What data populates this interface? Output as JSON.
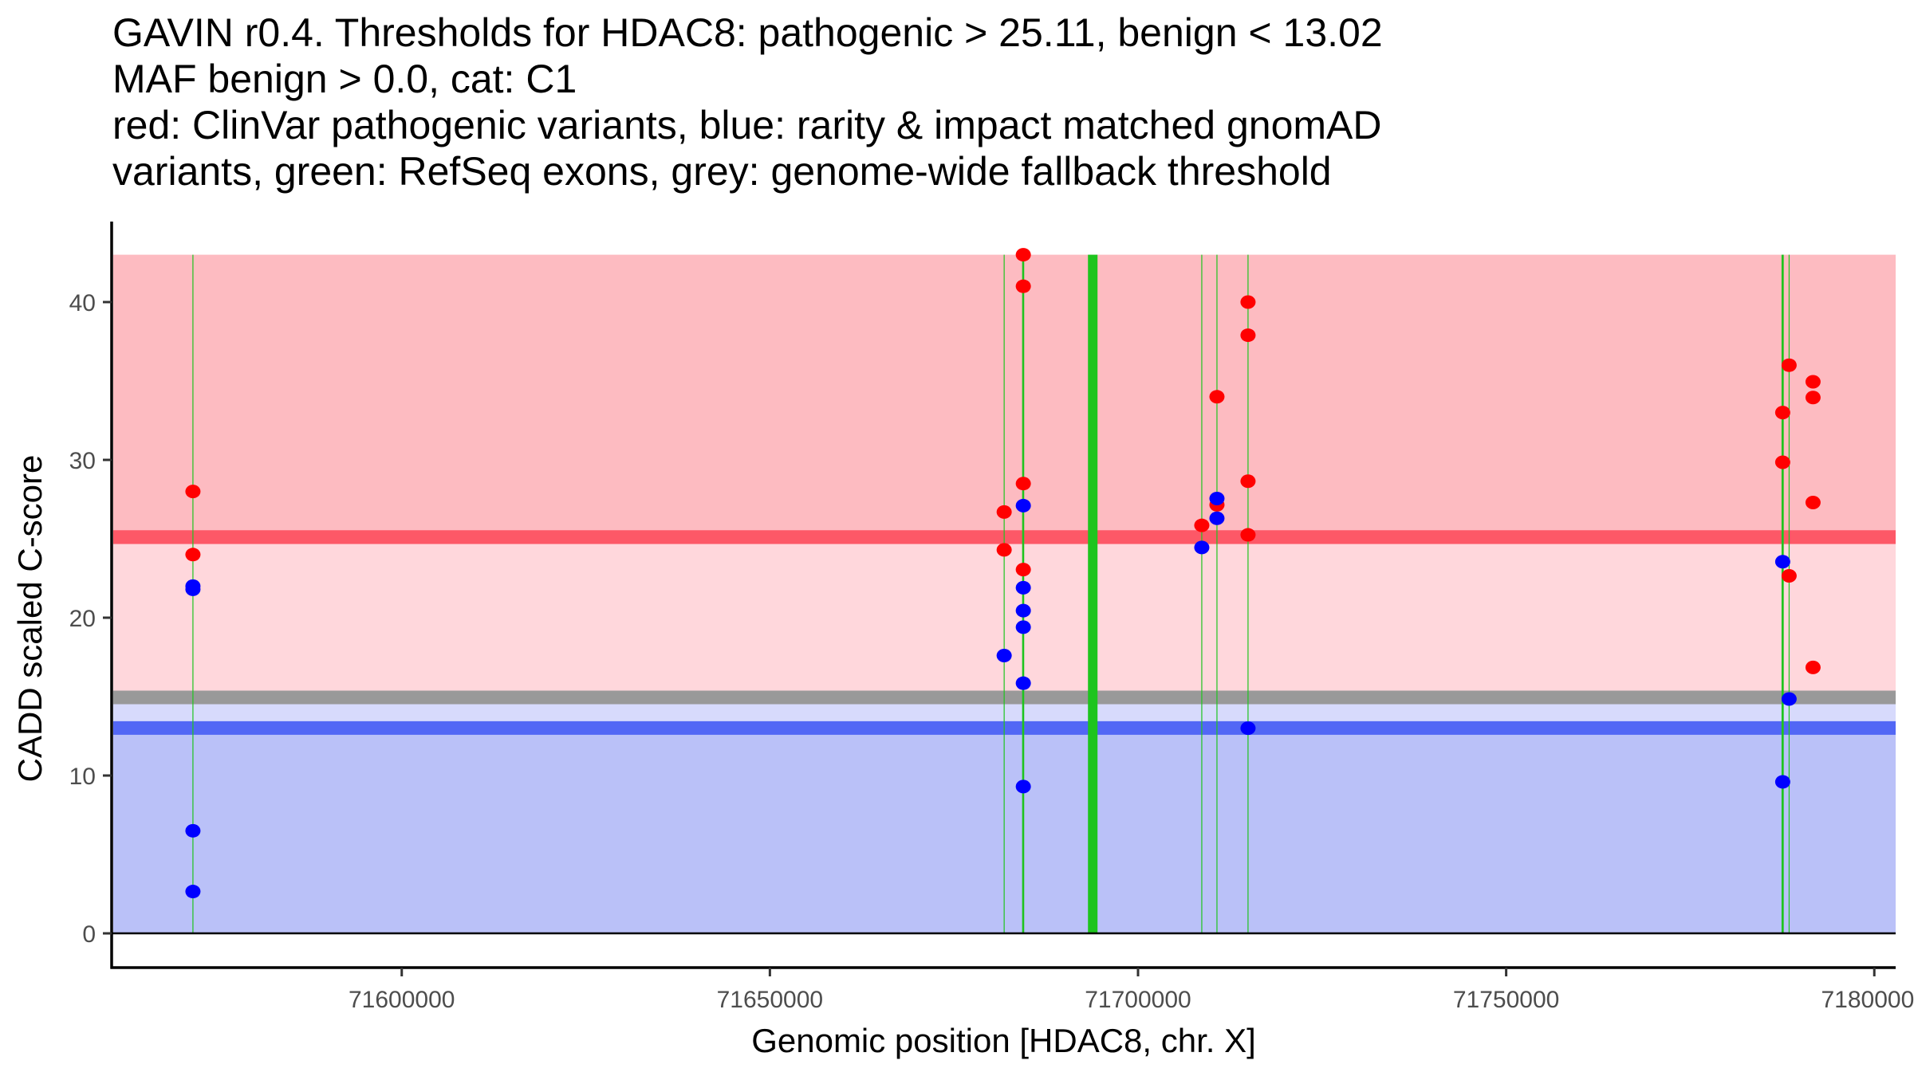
{
  "chart_data": {
    "type": "scatter",
    "title_lines": [
      "GAVIN r0.4. Thresholds for HDAC8: pathogenic > 25.11, benign < 13.02",
      "MAF benign > 0.0, cat: C1",
      "red: ClinVar pathogenic variants, blue: rarity & impact matched gnomAD",
      "variants, green: RefSeq exons, grey: genome-wide fallback threshold"
    ],
    "xlabel": "Genomic position [HDAC8, chr. X]",
    "ylabel": "CADD scaled C-score",
    "xlim": [
      71560600,
      71802900
    ],
    "ylim": [
      -2.17,
      45.1
    ],
    "x_ticks": [
      71600000,
      71650000,
      71700000,
      71750000,
      71800000
    ],
    "x_tick_labels": [
      "71600000",
      "71650000",
      "71700000",
      "71750000",
      "71800000"
    ],
    "y_ticks": [
      0,
      10,
      20,
      30,
      40
    ],
    "y_tick_labels": [
      "0",
      "10",
      "20",
      "30",
      "40"
    ],
    "grid": false,
    "legend": "none (described in title)",
    "thresholds": {
      "pathogenic": 25.11,
      "benign": 13.02,
      "genome_wide_fallback": 14.95
    },
    "regions": [
      {
        "name": "benign-region",
        "from": 0,
        "to": 12.58,
        "color": "#BAC1F8"
      },
      {
        "name": "benign-threshold-band",
        "from": 12.58,
        "to": 13.45,
        "color": "#5267F5"
      },
      {
        "name": "light-benign-region",
        "from": 13.45,
        "to": 14.52,
        "color": "#D7DAFC"
      },
      {
        "name": "fallback-threshold-band",
        "from": 14.52,
        "to": 15.38,
        "color": "#999999"
      },
      {
        "name": "vus-region",
        "from": 15.38,
        "to": 24.67,
        "color": "#FFD7DC"
      },
      {
        "name": "pathogenic-threshold-band",
        "from": 24.67,
        "to": 25.55,
        "color": "#FD5867"
      },
      {
        "name": "pathogenic-region",
        "from": 25.55,
        "to": 43.0,
        "color": "#FDBBC1"
      }
    ],
    "exons": [
      {
        "start": 71571640,
        "end": 71571640,
        "weight": "thin"
      },
      {
        "start": 71681820,
        "end": 71681820,
        "weight": "thin"
      },
      {
        "start": 71684300,
        "end": 71684500,
        "weight": "medium"
      },
      {
        "start": 71693200,
        "end": 71694500,
        "weight": "thick"
      },
      {
        "start": 71708660,
        "end": 71708660,
        "weight": "thin"
      },
      {
        "start": 71710720,
        "end": 71710720,
        "weight": "thin"
      },
      {
        "start": 71714940,
        "end": 71714940,
        "weight": "thin"
      },
      {
        "start": 71787400,
        "end": 71787700,
        "weight": "medium"
      },
      {
        "start": 71788430,
        "end": 71788430,
        "weight": "thin"
      }
    ],
    "exon_color": "#1EC41E",
    "exon_top": 43.0,
    "series": [
      {
        "name": "ClinVar pathogenic variants",
        "color": "#FF0000",
        "points": [
          {
            "x": 71571640,
            "y": 28.0
          },
          {
            "x": 71571640,
            "y": 24.0
          },
          {
            "x": 71681820,
            "y": 26.7
          },
          {
            "x": 71681820,
            "y": 24.3
          },
          {
            "x": 71684420,
            "y": 43.0
          },
          {
            "x": 71684420,
            "y": 41.0
          },
          {
            "x": 71684420,
            "y": 28.5
          },
          {
            "x": 71684420,
            "y": 23.05
          },
          {
            "x": 71708660,
            "y": 25.85
          },
          {
            "x": 71710720,
            "y": 34.0
          },
          {
            "x": 71710720,
            "y": 27.15
          },
          {
            "x": 71714940,
            "y": 40.0
          },
          {
            "x": 71714940,
            "y": 37.9
          },
          {
            "x": 71714940,
            "y": 28.65
          },
          {
            "x": 71714940,
            "y": 25.25
          },
          {
            "x": 71787560,
            "y": 33.0
          },
          {
            "x": 71787560,
            "y": 29.85
          },
          {
            "x": 71788430,
            "y": 36.0
          },
          {
            "x": 71788430,
            "y": 22.65
          },
          {
            "x": 71791680,
            "y": 34.95
          },
          {
            "x": 71791680,
            "y": 33.95
          },
          {
            "x": 71791680,
            "y": 27.3
          },
          {
            "x": 71791680,
            "y": 16.85
          }
        ]
      },
      {
        "name": "rarity & impact matched gnomAD variants",
        "color": "#0000FF",
        "points": [
          {
            "x": 71571640,
            "y": 22.0
          },
          {
            "x": 71571640,
            "y": 21.8
          },
          {
            "x": 71571640,
            "y": 6.5
          },
          {
            "x": 71571640,
            "y": 2.65
          },
          {
            "x": 71681820,
            "y": 17.6
          },
          {
            "x": 71684420,
            "y": 27.1
          },
          {
            "x": 71684420,
            "y": 21.9
          },
          {
            "x": 71684420,
            "y": 20.45
          },
          {
            "x": 71684420,
            "y": 19.4
          },
          {
            "x": 71684420,
            "y": 15.85
          },
          {
            "x": 71684420,
            "y": 9.3
          },
          {
            "x": 71708660,
            "y": 24.45
          },
          {
            "x": 71710720,
            "y": 27.55
          },
          {
            "x": 71710720,
            "y": 26.3
          },
          {
            "x": 71714940,
            "y": 13.0
          },
          {
            "x": 71787560,
            "y": 23.55
          },
          {
            "x": 71787560,
            "y": 9.6
          },
          {
            "x": 71788430,
            "y": 14.85
          }
        ]
      }
    ]
  }
}
